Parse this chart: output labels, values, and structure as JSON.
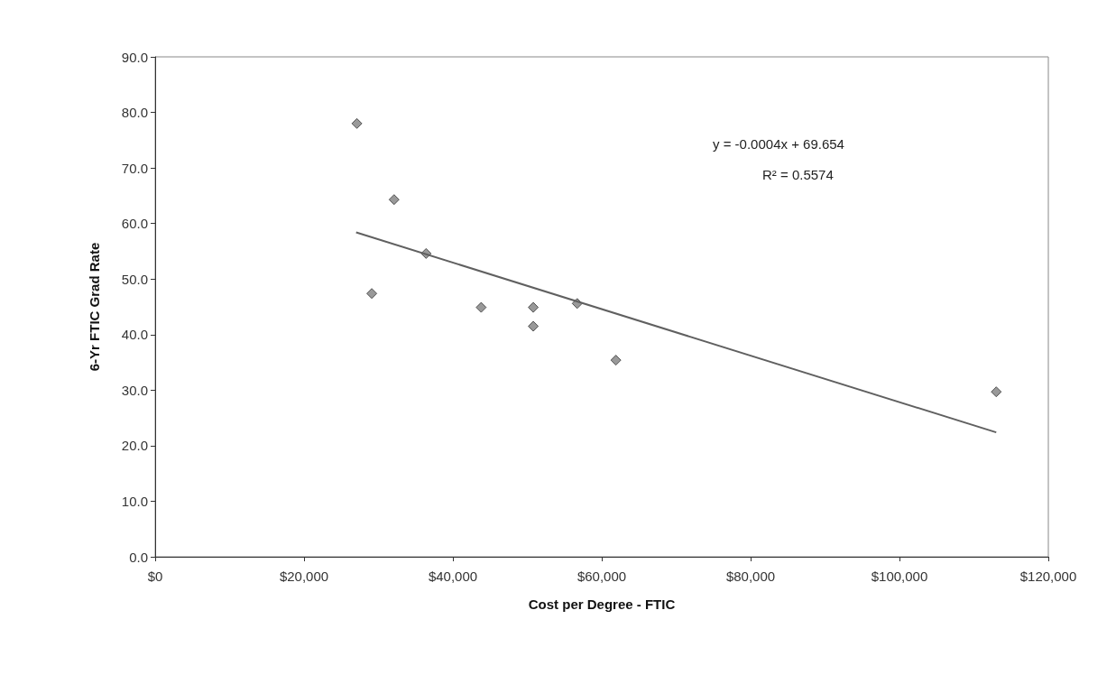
{
  "chart_data": {
    "type": "scatter",
    "xlabel": "Cost per Degree - FTIC",
    "ylabel": "6-Yr FTIC Grad Rate",
    "xlim": [
      0,
      120000
    ],
    "ylim": [
      0,
      90
    ],
    "xticks": [
      {
        "value": 0,
        "label": "$0"
      },
      {
        "value": 20000,
        "label": "$20,000"
      },
      {
        "value": 40000,
        "label": "$40,000"
      },
      {
        "value": 60000,
        "label": "$60,000"
      },
      {
        "value": 80000,
        "label": "$80,000"
      },
      {
        "value": 100000,
        "label": "$100,000"
      },
      {
        "value": 120000,
        "label": "$120,000"
      }
    ],
    "yticks": [
      {
        "value": 0,
        "label": "0.0"
      },
      {
        "value": 10,
        "label": "10.0"
      },
      {
        "value": 20,
        "label": "20.0"
      },
      {
        "value": 30,
        "label": "30.0"
      },
      {
        "value": 40,
        "label": "40.0"
      },
      {
        "value": 50,
        "label": "50.0"
      },
      {
        "value": 60,
        "label": "60.0"
      },
      {
        "value": 70,
        "label": "70.0"
      },
      {
        "value": 80,
        "label": "80.0"
      },
      {
        "value": 90,
        "label": "90.0"
      }
    ],
    "grid": false,
    "marker": "diamond",
    "series": [
      {
        "color": "#808080",
        "x": [
          27100,
          32100,
          36400,
          29100,
          43800,
          50800,
          50800,
          56700,
          61900,
          113000
        ],
        "values": [
          78.0,
          64.3,
          54.6,
          47.4,
          44.9,
          44.9,
          41.5,
          45.6,
          35.4,
          29.7
        ]
      },
      {
        "type": "line",
        "color": "#606060",
        "marker": "none",
        "x": [
          27000,
          113000
        ],
        "values": [
          58.4,
          22.4
        ]
      }
    ],
    "annotations": [
      "y = -0.0004x + 69.654",
      "R² = 0.5574"
    ]
  }
}
